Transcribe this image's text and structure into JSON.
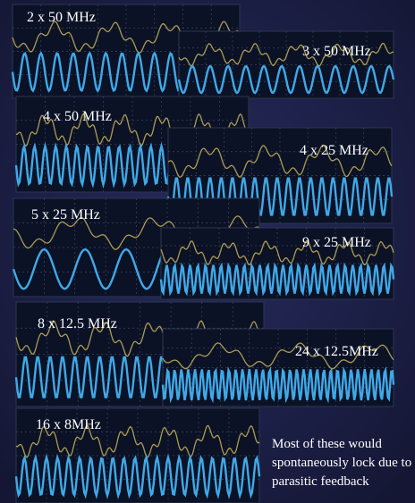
{
  "panels": [
    {
      "label": "2 x 50 MHz"
    },
    {
      "label": "3 x 50 MHz"
    },
    {
      "label": "4 x 50 MHz"
    },
    {
      "label": "4 x 25 MHz"
    },
    {
      "label": "5 x 25 MHz"
    },
    {
      "label": "9 x 25 MHz"
    },
    {
      "label": "8 x 12.5 MHz"
    },
    {
      "label": "24 x 12.5MHz"
    },
    {
      "label": "16 x 8MHz"
    }
  ],
  "caption": "Most of these would spontaneously lock due to parasitic feedback"
}
